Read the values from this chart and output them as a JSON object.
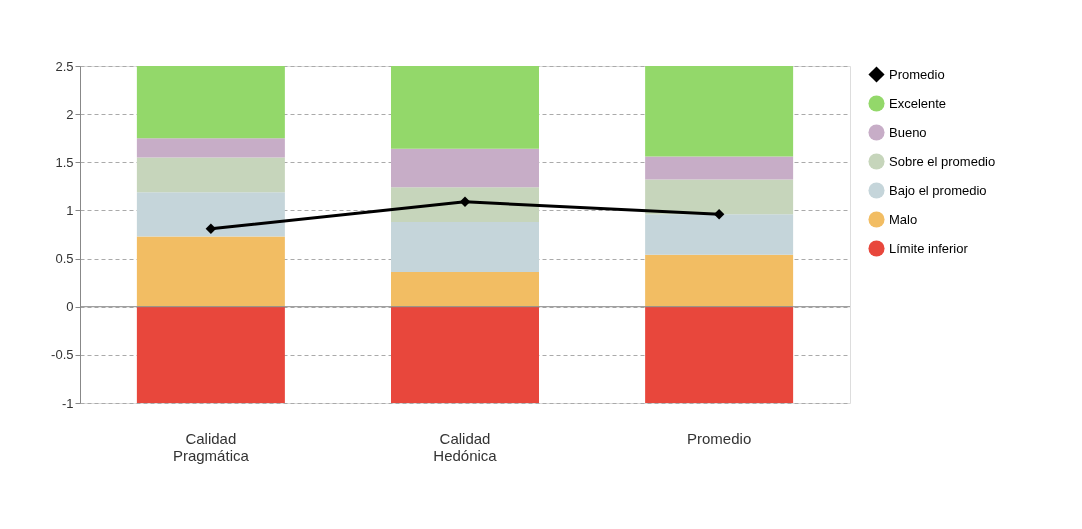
{
  "chart_data": {
    "type": "bar",
    "stacked": true,
    "categories": [
      "Calidad Pragmática",
      "Calidad Hedónica",
      "Promedio"
    ],
    "series": [
      {
        "name": "Límite inferior",
        "color": "#e8473c",
        "values": [
          -1,
          -1,
          -1
        ]
      },
      {
        "name": "Malo",
        "color": "#f2bd63",
        "values": [
          0.73,
          0.36,
          0.54
        ]
      },
      {
        "name": "Bajo el promedio",
        "color": "#c5d5da",
        "values": [
          0.46,
          0.52,
          0.42
        ]
      },
      {
        "name": "Sobre el promedio",
        "color": "#c6d5bb",
        "values": [
          0.36,
          0.36,
          0.36
        ]
      },
      {
        "name": "Bueno",
        "color": "#c7adc7",
        "values": [
          0.2,
          0.4,
          0.24
        ]
      },
      {
        "name": "Excelente",
        "color": "#93d86a",
        "values": [
          0.75,
          0.86,
          0.94
        ]
      },
      {
        "name": "Promedio",
        "type": "line",
        "color": "#000000",
        "marker": "diamond",
        "values": [
          0.81,
          1.09,
          0.96
        ]
      }
    ],
    "ylim": [
      -1,
      2.5
    ],
    "yticks": [
      -1,
      -0.5,
      0,
      0.5,
      1,
      1.5,
      2,
      2.5
    ],
    "grid": "y",
    "legend": "right"
  }
}
